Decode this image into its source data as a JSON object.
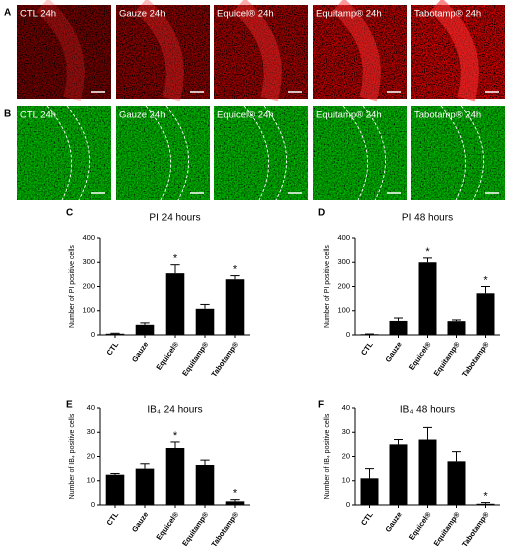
{
  "image_rows": [
    {
      "letter": "A",
      "labels": [
        "CTL 24h",
        "Gauze 24h",
        "Equicel® 24h",
        "Equitamp® 24h",
        "Tabotamp® 24h"
      ]
    },
    {
      "letter": "B",
      "labels": [
        "CTL 24h",
        "Gauze 24h",
        "Equicel® 24h",
        "Equitamp® 24h",
        "Tabotamp® 24h"
      ]
    }
  ],
  "chart_data": [
    {
      "type": "bar",
      "letter": "C",
      "title": "PI 24 hours",
      "ylabel": "Number of PI positive cells",
      "categories": [
        "CTL",
        "Gauze",
        "Equicel®",
        "Equitamp®",
        "Tabotamp®"
      ],
      "values": [
        5,
        42,
        255,
        108,
        230
      ],
      "errors": [
        2,
        8,
        35,
        18,
        15
      ],
      "significance": [
        null,
        null,
        "*",
        null,
        "*"
      ],
      "color": "#000000",
      "ylim": [
        0,
        400
      ],
      "yticks": [
        0,
        100,
        200,
        300,
        400
      ]
    },
    {
      "type": "bar",
      "letter": "D",
      "title": "PI 48 hours",
      "ylabel": "Number of PI positive cells",
      "categories": [
        "CTL",
        "Gauze",
        "Equicel®",
        "Equitamp®",
        "Tabotamp®"
      ],
      "values": [
        3,
        58,
        300,
        57,
        172
      ],
      "errors": [
        1,
        12,
        18,
        5,
        28
      ],
      "significance": [
        null,
        null,
        "*",
        null,
        "*"
      ],
      "color": "#000000",
      "ylim": [
        0,
        400
      ],
      "yticks": [
        0,
        100,
        200,
        300,
        400
      ]
    },
    {
      "type": "bar",
      "letter": "E",
      "title": "IB₄ 24 hours",
      "ylabel": "Number of IB₄ positive cells",
      "categories": [
        "CTL",
        "Gauze",
        "Equicel®",
        "Equitamp®",
        "Tabotamp®"
      ],
      "values": [
        12.5,
        15,
        23.5,
        16.5,
        1.5
      ],
      "errors": [
        0.5,
        2,
        2.5,
        2,
        0.7
      ],
      "significance": [
        null,
        null,
        "*",
        null,
        "*"
      ],
      "color": "#000000",
      "ylim": [
        0,
        40
      ],
      "yticks": [
        0,
        10,
        20,
        30,
        40
      ]
    },
    {
      "type": "bar",
      "letter": "F",
      "title": "IB₄ 48 hours",
      "ylabel": "Number of IB₄ positive cells",
      "categories": [
        "CTL",
        "Gauze",
        "Equicel®",
        "Equitamp®",
        "Tabotamp®"
      ],
      "values": [
        11,
        25,
        27,
        18,
        0.5
      ],
      "errors": [
        4,
        2,
        5,
        4,
        0.5
      ],
      "significance": [
        null,
        null,
        null,
        null,
        "*"
      ],
      "color": "#000000",
      "ylim": [
        0,
        40
      ],
      "yticks": [
        0,
        10,
        20,
        30,
        40
      ]
    }
  ]
}
